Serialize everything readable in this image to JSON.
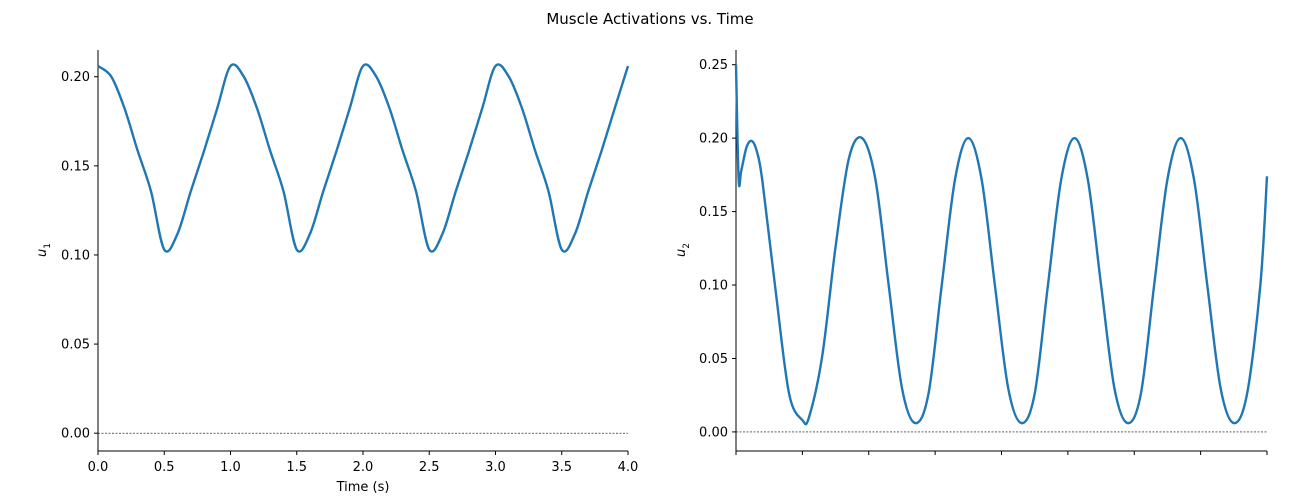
{
  "figure_title": "Muscle Activations vs. Time",
  "chart_data": [
    {
      "type": "line",
      "xlabel": "Time (s)",
      "ylabel": "u",
      "ylabel_subscript": "1",
      "xlim": [
        0.0,
        4.0
      ],
      "ylim": [
        -0.01,
        0.215
      ],
      "xticks": [
        "0.0",
        "0.5",
        "1.0",
        "1.5",
        "2.0",
        "2.5",
        "3.0",
        "3.5",
        "4.0"
      ],
      "xtick_values": [
        0.0,
        0.5,
        1.0,
        1.5,
        2.0,
        2.5,
        3.0,
        3.5,
        4.0
      ],
      "yticks": [
        "0.00",
        "0.05",
        "0.10",
        "0.15",
        "0.20"
      ],
      "ytick_values": [
        0.0,
        0.05,
        0.1,
        0.15,
        0.2
      ],
      "reference_line": {
        "y": 0.0,
        "style": "dashed",
        "color": "#000000"
      },
      "grid": false,
      "series": [
        {
          "color": "#1f77b4",
          "x": [
            0.0,
            0.1,
            0.2,
            0.3,
            0.4,
            0.5,
            0.6,
            0.7,
            0.8,
            0.9,
            1.0,
            1.1,
            1.2,
            1.3,
            1.4,
            1.5,
            1.6,
            1.7,
            1.8,
            1.9,
            2.0,
            2.1,
            2.2,
            2.3,
            2.4,
            2.5,
            2.6,
            2.7,
            2.8,
            2.9,
            3.0,
            3.1,
            3.2,
            3.3,
            3.4,
            3.5,
            3.6,
            3.7,
            3.8,
            3.9,
            4.0
          ],
          "values": [
            0.206,
            0.2001,
            0.1823,
            0.1583,
            0.1357,
            0.103,
            0.1119,
            0.1357,
            0.1583,
            0.1823,
            0.206,
            0.2001,
            0.1823,
            0.1583,
            0.1357,
            0.103,
            0.1119,
            0.1357,
            0.1583,
            0.1823,
            0.206,
            0.2001,
            0.1823,
            0.1583,
            0.1357,
            0.103,
            0.1119,
            0.1357,
            0.1583,
            0.1823,
            0.206,
            0.2001,
            0.1823,
            0.1583,
            0.1357,
            0.103,
            0.1119,
            0.1357,
            0.1583,
            0.1823,
            0.206
          ]
        }
      ]
    },
    {
      "type": "line",
      "xlabel": "",
      "ylabel": "u",
      "ylabel_subscript": "2",
      "xlim": [
        0.0,
        4.0
      ],
      "ylim": [
        -0.013,
        0.26
      ],
      "xticks": [],
      "xtick_values": [
        0.0,
        0.5,
        1.0,
        1.5,
        2.0,
        2.5,
        3.0,
        3.5,
        4.0
      ],
      "yticks": [
        "0.00",
        "0.05",
        "0.10",
        "0.15",
        "0.20",
        "0.25"
      ],
      "ytick_values": [
        0.0,
        0.05,
        0.1,
        0.15,
        0.2,
        0.25
      ],
      "reference_line": {
        "y": 0.0,
        "style": "dashed",
        "color": "#000000"
      },
      "grid": false,
      "series": [
        {
          "color": "#1f77b4",
          "x": [
            0.0,
            0.02,
            0.04,
            0.08,
            0.12,
            0.16,
            0.2,
            0.3,
            0.4,
            0.5,
            0.55,
            0.65,
            0.75,
            0.85,
            0.95,
            1.05,
            1.15,
            1.25,
            1.35,
            1.45,
            1.55,
            1.65,
            1.75,
            1.85,
            1.95,
            2.05,
            2.15,
            2.25,
            2.35,
            2.45,
            2.55,
            2.65,
            2.75,
            2.85,
            2.95,
            3.05,
            3.15,
            3.25,
            3.35,
            3.45,
            3.55,
            3.65,
            3.75,
            3.85,
            3.95,
            4.0
          ],
          "values": [
            0.25,
            0.172,
            0.178,
            0.194,
            0.198,
            0.19,
            0.17,
            0.095,
            0.026,
            0.008,
            0.01,
            0.052,
            0.126,
            0.186,
            0.2,
            0.172,
            0.1,
            0.03,
            0.006,
            0.026,
            0.1,
            0.172,
            0.2,
            0.172,
            0.1,
            0.03,
            0.006,
            0.026,
            0.1,
            0.172,
            0.2,
            0.172,
            0.1,
            0.03,
            0.006,
            0.026,
            0.1,
            0.172,
            0.2,
            0.172,
            0.1,
            0.03,
            0.006,
            0.026,
            0.1,
            0.174
          ]
        }
      ]
    }
  ]
}
